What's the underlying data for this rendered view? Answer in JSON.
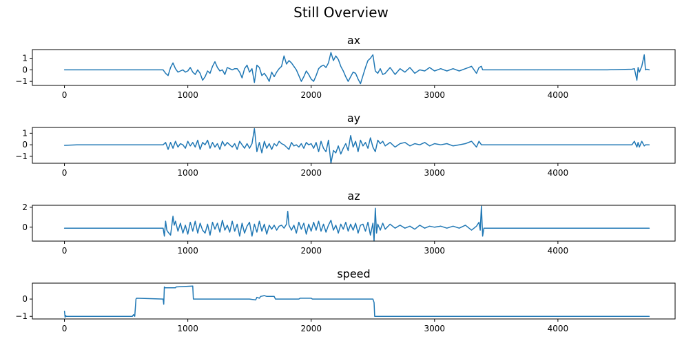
{
  "figure": {
    "title": "Still Overview"
  },
  "chart_data": [
    {
      "type": "line",
      "title": "ax",
      "xlim": [
        -260,
        4950
      ],
      "ylim": [
        -1.35,
        1.75
      ],
      "xticks": [
        0,
        1000,
        2000,
        3000,
        4000
      ],
      "yticks": [
        1,
        0,
        -1
      ],
      "ytick_labels": [
        "1",
        "0",
        "−1"
      ],
      "series": [
        {
          "name": "ax",
          "color": "#1f77b4",
          "x": [
            0,
            100,
            200,
            300,
            400,
            500,
            600,
            700,
            800,
            820,
            840,
            860,
            880,
            900,
            920,
            940,
            960,
            980,
            1000,
            1020,
            1040,
            1060,
            1080,
            1100,
            1120,
            1140,
            1160,
            1180,
            1200,
            1220,
            1240,
            1260,
            1280,
            1300,
            1320,
            1340,
            1360,
            1380,
            1400,
            1420,
            1440,
            1460,
            1480,
            1500,
            1520,
            1540,
            1560,
            1580,
            1600,
            1620,
            1640,
            1660,
            1680,
            1700,
            1720,
            1740,
            1760,
            1780,
            1800,
            1820,
            1840,
            1860,
            1880,
            1900,
            1920,
            1940,
            1960,
            1980,
            2000,
            2020,
            2040,
            2060,
            2080,
            2100,
            2120,
            2140,
            2160,
            2180,
            2200,
            2220,
            2240,
            2260,
            2280,
            2300,
            2320,
            2340,
            2360,
            2380,
            2400,
            2420,
            2440,
            2460,
            2480,
            2500,
            2520,
            2540,
            2560,
            2580,
            2600,
            2640,
            2680,
            2720,
            2760,
            2800,
            2840,
            2880,
            2920,
            2960,
            3000,
            3050,
            3100,
            3150,
            3200,
            3250,
            3300,
            3340,
            3360,
            3380,
            3390,
            3400,
            3500,
            3600,
            3800,
            4000,
            4200,
            4400,
            4600,
            4620,
            4640,
            4650,
            4660,
            4680,
            4700,
            4710,
            4720,
            4740
          ],
          "y": [
            0.0,
            0.0,
            0.0,
            0.0,
            0.0,
            0.0,
            0.0,
            0.0,
            0.0,
            -0.3,
            -0.5,
            0.2,
            0.6,
            0.1,
            -0.2,
            -0.1,
            0.0,
            -0.2,
            -0.1,
            0.2,
            -0.2,
            -0.4,
            0.0,
            -0.3,
            -0.9,
            -0.6,
            -0.1,
            -0.3,
            0.3,
            0.7,
            0.2,
            -0.1,
            0.0,
            -0.4,
            0.2,
            0.1,
            0.0,
            0.1,
            0.1,
            -0.2,
            -0.7,
            0.1,
            0.4,
            -0.2,
            0.1,
            -1.1,
            0.4,
            0.2,
            -0.5,
            -0.3,
            -0.6,
            -1.0,
            -0.2,
            -0.6,
            -0.2,
            0.1,
            0.3,
            1.2,
            0.5,
            0.8,
            0.6,
            0.3,
            0.0,
            -0.5,
            -1.0,
            -0.6,
            -0.1,
            -0.4,
            -0.8,
            -1.0,
            -0.5,
            0.1,
            0.3,
            0.4,
            0.2,
            0.6,
            1.5,
            0.8,
            1.2,
            0.9,
            0.3,
            -0.1,
            -0.6,
            -1.0,
            -0.6,
            -0.2,
            -0.3,
            -0.8,
            -1.2,
            -0.5,
            0.2,
            0.8,
            1.0,
            1.3,
            -0.1,
            -0.3,
            0.1,
            -0.4,
            -0.3,
            0.2,
            -0.4,
            0.1,
            -0.2,
            0.2,
            -0.3,
            0.0,
            -0.1,
            0.2,
            -0.1,
            0.1,
            -0.1,
            0.1,
            -0.1,
            0.1,
            0.3,
            -0.3,
            0.2,
            0.3,
            0.0,
            0.0,
            0.0,
            0.0,
            0.0,
            0.0,
            0.0,
            0.0,
            0.05,
            0.1,
            -0.9,
            0.2,
            -0.2,
            0.3,
            1.3,
            0.0,
            0.05,
            0.0
          ]
        }
      ]
    },
    {
      "type": "line",
      "title": "ay",
      "xlim": [
        -260,
        4950
      ],
      "ylim": [
        -1.6,
        1.5
      ],
      "xticks": [
        0,
        1000,
        2000,
        3000,
        4000
      ],
      "yticks": [
        1,
        0,
        -1
      ],
      "ytick_labels": [
        "1",
        "0",
        "−1"
      ],
      "series": [
        {
          "name": "ay",
          "color": "#1f77b4",
          "x": [
            0,
            100,
            200,
            300,
            400,
            500,
            600,
            700,
            800,
            820,
            840,
            860,
            880,
            900,
            920,
            940,
            960,
            980,
            1000,
            1020,
            1040,
            1060,
            1080,
            1100,
            1120,
            1140,
            1160,
            1180,
            1200,
            1220,
            1240,
            1260,
            1280,
            1300,
            1320,
            1340,
            1360,
            1380,
            1400,
            1420,
            1440,
            1460,
            1480,
            1500,
            1520,
            1540,
            1560,
            1580,
            1600,
            1620,
            1640,
            1660,
            1680,
            1700,
            1720,
            1740,
            1760,
            1780,
            1800,
            1820,
            1840,
            1860,
            1880,
            1900,
            1920,
            1940,
            1960,
            1980,
            2000,
            2020,
            2040,
            2060,
            2080,
            2100,
            2120,
            2140,
            2160,
            2180,
            2200,
            2220,
            2240,
            2260,
            2280,
            2300,
            2320,
            2340,
            2360,
            2380,
            2400,
            2420,
            2440,
            2460,
            2480,
            2500,
            2520,
            2540,
            2560,
            2580,
            2600,
            2640,
            2680,
            2720,
            2760,
            2800,
            2840,
            2880,
            2920,
            2960,
            3000,
            3050,
            3100,
            3150,
            3200,
            3250,
            3300,
            3340,
            3360,
            3380,
            3390,
            3400,
            3500,
            3600,
            3800,
            4000,
            4200,
            4400,
            4600,
            4620,
            4640,
            4650,
            4660,
            4680,
            4700,
            4710,
            4720,
            4740
          ],
          "y": [
            -0.05,
            0.0,
            0.0,
            0.0,
            0.0,
            0.0,
            0.0,
            0.0,
            0.0,
            0.2,
            -0.4,
            0.2,
            -0.3,
            0.3,
            -0.2,
            0.1,
            0.0,
            -0.3,
            0.3,
            -0.1,
            0.2,
            -0.2,
            0.4,
            -0.4,
            0.2,
            0.0,
            0.4,
            -0.3,
            0.2,
            -0.2,
            0.1,
            -0.4,
            0.3,
            -0.1,
            0.2,
            0.0,
            -0.2,
            0.1,
            -0.4,
            0.3,
            0.0,
            -0.3,
            0.1,
            -0.3,
            0.1,
            1.4,
            -0.6,
            0.2,
            -0.7,
            0.3,
            -0.3,
            0.1,
            -0.4,
            0.1,
            -0.1,
            0.3,
            0.1,
            0.0,
            -0.2,
            -0.4,
            0.2,
            -0.1,
            0.0,
            -0.2,
            0.1,
            -0.3,
            0.2,
            0.0,
            0.1,
            -0.3,
            0.2,
            -0.6,
            0.3,
            -0.3,
            -0.6,
            0.4,
            -1.6,
            -0.5,
            -0.7,
            -0.1,
            -0.8,
            -0.3,
            0.1,
            -0.5,
            0.8,
            -0.2,
            0.3,
            -0.6,
            0.4,
            -0.1,
            0.2,
            -0.3,
            0.6,
            -0.2,
            -0.6,
            0.4,
            0.1,
            0.3,
            -0.1,
            0.2,
            -0.2,
            0.1,
            0.2,
            -0.1,
            0.1,
            0.0,
            0.2,
            -0.1,
            0.1,
            0.0,
            0.1,
            -0.1,
            0.0,
            0.1,
            0.3,
            -0.2,
            0.3,
            0.0,
            0.0,
            0.0,
            0.0,
            0.0,
            0.0,
            0.0,
            0.0,
            0.0,
            0.0,
            0.3,
            -0.2,
            0.2,
            -0.2,
            0.3,
            -0.1,
            0.0,
            0.0,
            0.0
          ]
        }
      ]
    },
    {
      "type": "line",
      "title": "az",
      "xlim": [
        -260,
        4950
      ],
      "ylim": [
        -1.4,
        2.2
      ],
      "xticks": [
        0,
        1000,
        2000,
        3000,
        4000
      ],
      "yticks": [
        2,
        0
      ],
      "ytick_labels": [
        "2",
        "0"
      ],
      "series": [
        {
          "name": "az",
          "color": "#1f77b4",
          "x": [
            0,
            100,
            200,
            300,
            400,
            500,
            600,
            700,
            800,
            810,
            820,
            830,
            840,
            860,
            880,
            890,
            900,
            920,
            940,
            960,
            980,
            1000,
            1020,
            1040,
            1060,
            1080,
            1100,
            1120,
            1140,
            1160,
            1180,
            1200,
            1220,
            1240,
            1260,
            1280,
            1300,
            1320,
            1340,
            1360,
            1380,
            1400,
            1420,
            1440,
            1460,
            1480,
            1500,
            1520,
            1540,
            1560,
            1580,
            1600,
            1620,
            1640,
            1660,
            1680,
            1700,
            1720,
            1740,
            1760,
            1780,
            1800,
            1810,
            1820,
            1840,
            1860,
            1880,
            1900,
            1920,
            1940,
            1960,
            1980,
            2000,
            2020,
            2040,
            2060,
            2080,
            2100,
            2120,
            2140,
            2160,
            2180,
            2200,
            2220,
            2240,
            2260,
            2280,
            2300,
            2320,
            2340,
            2360,
            2380,
            2400,
            2420,
            2440,
            2460,
            2480,
            2500,
            2510,
            2520,
            2530,
            2540,
            2560,
            2580,
            2600,
            2640,
            2680,
            2720,
            2760,
            2800,
            2840,
            2880,
            2920,
            2960,
            3000,
            3050,
            3100,
            3150,
            3200,
            3250,
            3300,
            3340,
            3360,
            3370,
            3380,
            3390,
            3400,
            3500,
            3600,
            3800,
            4000,
            4200,
            4400,
            4600,
            4700,
            4740
          ],
          "y": [
            -0.1,
            -0.1,
            -0.1,
            -0.1,
            -0.1,
            -0.1,
            -0.1,
            -0.1,
            -0.1,
            -0.9,
            0.6,
            -0.3,
            -0.5,
            -0.8,
            1.1,
            0.2,
            0.6,
            -0.4,
            0.4,
            -0.6,
            0.2,
            -0.7,
            0.5,
            -0.4,
            0.6,
            -0.6,
            0.4,
            -0.3,
            -0.6,
            0.3,
            -0.8,
            0.5,
            -0.2,
            0.4,
            -0.5,
            0.7,
            -0.3,
            0.2,
            -0.5,
            0.6,
            -0.4,
            0.3,
            -0.9,
            0.4,
            -0.6,
            0.1,
            0.5,
            -0.9,
            0.3,
            -0.5,
            0.6,
            -0.4,
            0.3,
            -0.7,
            0.2,
            -0.2,
            0.2,
            -0.3,
            0.1,
            0.2,
            -0.1,
            0.3,
            1.6,
            0.2,
            -0.3,
            0.2,
            -0.6,
            0.5,
            -0.2,
            0.4,
            -0.7,
            0.3,
            -0.4,
            0.5,
            -0.3,
            0.6,
            -0.4,
            0.3,
            -0.5,
            0.2,
            0.7,
            -0.3,
            0.2,
            -0.6,
            0.3,
            -0.2,
            0.5,
            -0.4,
            0.3,
            -0.3,
            0.4,
            -0.6,
            0.2,
            0.3,
            -0.4,
            0.5,
            -0.8,
            0.4,
            -1.4,
            1.9,
            -0.6,
            0.3,
            -0.3,
            0.4,
            -0.2,
            0.3,
            -0.1,
            0.2,
            -0.1,
            0.1,
            -0.2,
            0.2,
            -0.1,
            0.1,
            0.0,
            0.1,
            -0.1,
            0.1,
            -0.1,
            0.2,
            -0.3,
            0.1,
            0.5,
            -0.3,
            2.1,
            -0.9,
            -0.1,
            -0.1,
            -0.1,
            -0.1,
            -0.1,
            -0.1,
            -0.1,
            -0.1,
            -0.1,
            -0.1
          ]
        }
      ]
    },
    {
      "type": "line",
      "title": "speed",
      "xlim": [
        -260,
        4950
      ],
      "ylim": [
        -1.15,
        0.92
      ],
      "xticks": [
        0,
        1000,
        2000,
        3000,
        4000
      ],
      "yticks": [
        0,
        -1
      ],
      "ytick_labels": [
        "0",
        "−1"
      ],
      "series": [
        {
          "name": "speed",
          "color": "#1f77b4",
          "x": [
            0,
            5,
            10,
            15,
            550,
            560,
            570,
            580,
            585,
            800,
            805,
            810,
            815,
            900,
            905,
            1040,
            1045,
            1100,
            1500,
            1550,
            1560,
            1580,
            1590,
            1620,
            1640,
            1700,
            1710,
            1900,
            1910,
            2000,
            2010,
            2500,
            2510,
            2515,
            3000,
            4000,
            4740
          ],
          "y": [
            -0.7,
            -1.05,
            -0.95,
            -1.0,
            -1.0,
            -0.9,
            -1.0,
            0.0,
            0.05,
            0.0,
            -0.3,
            0.7,
            0.65,
            0.65,
            0.7,
            0.75,
            0.0,
            0.0,
            0.0,
            -0.05,
            0.1,
            0.05,
            0.15,
            0.2,
            0.15,
            0.15,
            0.0,
            0.0,
            0.05,
            0.05,
            0.0,
            0.0,
            -0.2,
            -1.0,
            -1.0,
            -1.0,
            -1.0
          ]
        }
      ]
    }
  ]
}
